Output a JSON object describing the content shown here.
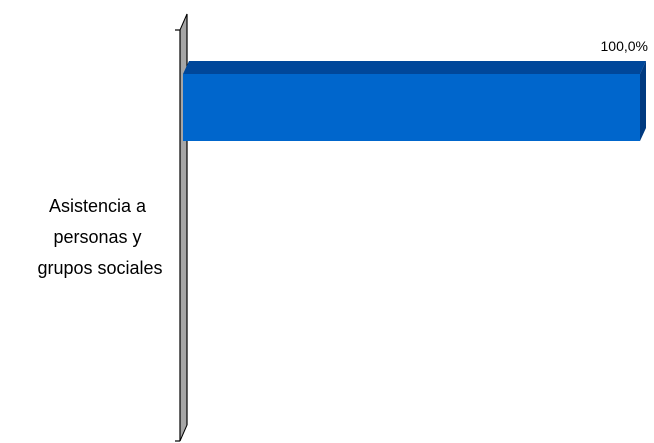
{
  "chart_data": {
    "type": "bar",
    "orientation": "horizontal",
    "style": "3d",
    "categories": [
      "Asistencia a personas y grupos sociales"
    ],
    "category_label_lines": [
      "Asistencia a",
      "personas y",
      "grupos sociales"
    ],
    "values": [
      100.0
    ],
    "data_labels": [
      "100,0%"
    ],
    "xlim": [
      0,
      100
    ],
    "grid": false,
    "legend": "none",
    "colors": {
      "bar_front": "#0066cc",
      "bar_top": "#00479a",
      "bar_side": "#003a80",
      "axis_wall": "#a6a6a6",
      "axis_line": "#000000"
    }
  }
}
